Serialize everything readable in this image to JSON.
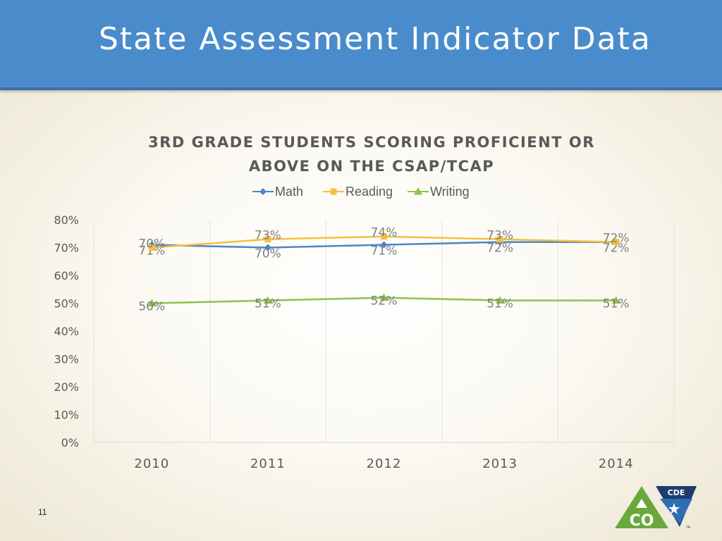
{
  "slide": {
    "title": "State Assessment Indicator Data",
    "page_number": "11"
  },
  "logo": {
    "top_text": "CDE",
    "main_text": "CO",
    "tm": "TM",
    "colors": {
      "green": "#6aa83c",
      "navy": "#1f3c6e",
      "blue": "#2f6db3"
    }
  },
  "chart_data": {
    "type": "line",
    "title_lines": [
      "3RD GRADE STUDENTS SCORING PROFICIENT OR",
      "ABOVE ON THE CSAP/TCAP"
    ],
    "categories": [
      "2010",
      "2011",
      "2012",
      "2013",
      "2014"
    ],
    "y_ticks": [
      "0%",
      "10%",
      "20%",
      "30%",
      "40%",
      "50%",
      "60%",
      "70%",
      "80%"
    ],
    "ylim": [
      0,
      80
    ],
    "grid": "vertical",
    "legend_position": "top",
    "series": [
      {
        "name": "Math",
        "values": [
          71,
          70,
          71,
          72,
          72
        ],
        "labels": [
          "71%",
          "70%",
          "71%",
          "72%",
          "72%"
        ],
        "color": "#4a86c6",
        "marker": "diamond"
      },
      {
        "name": "Reading",
        "values": [
          70,
          73,
          74,
          73,
          72
        ],
        "labels": [
          "70%",
          "73%",
          "74%",
          "73%",
          "72%"
        ],
        "color": "#f5bf3f",
        "marker": "square"
      },
      {
        "name": "Writing",
        "values": [
          50,
          51,
          52,
          51,
          51
        ],
        "labels": [
          "50%",
          "51%",
          "52%",
          "51%",
          "51%"
        ],
        "color": "#8cc34a",
        "marker": "triangle"
      }
    ]
  }
}
